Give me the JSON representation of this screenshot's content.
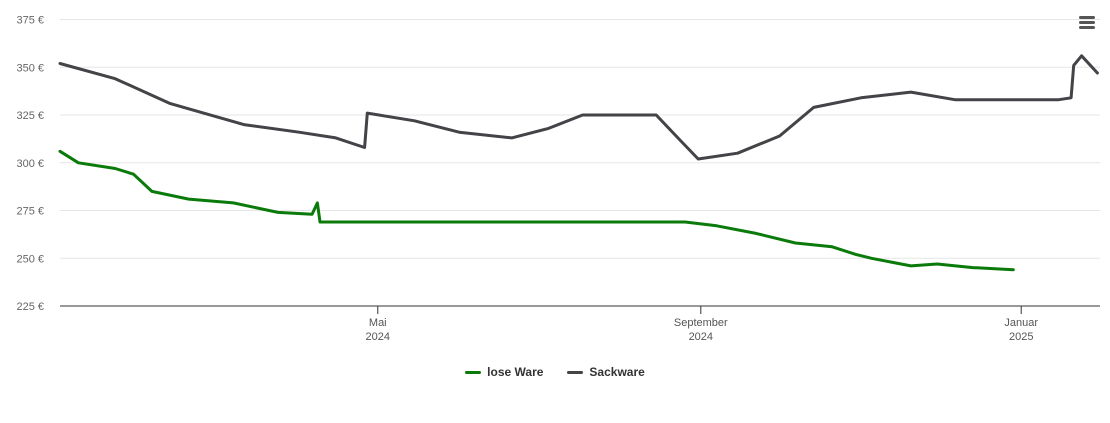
{
  "chart_data": {
    "type": "line",
    "x_range": [
      "2024-01-01",
      "2025-01-31"
    ],
    "y_range": [
      225,
      380
    ],
    "y_ticks": [
      225,
      250,
      275,
      300,
      325,
      350,
      375
    ],
    "y_tick_labels": [
      "225 €",
      "250 €",
      "275 €",
      "300 €",
      "325 €",
      "350 €",
      "375 €"
    ],
    "x_ticks": [
      {
        "date": "2024-05-01",
        "label_top": "Mai",
        "label_bottom": "2024"
      },
      {
        "date": "2024-09-01",
        "label_top": "September",
        "label_bottom": "2024"
      },
      {
        "date": "2025-01-01",
        "label_top": "Januar",
        "label_bottom": "2025"
      }
    ],
    "grid": true,
    "legend_position": "bottom-center",
    "series": [
      {
        "name": "lose Ware",
        "color": "#0a7a0a",
        "points": [
          [
            "2024-01-01",
            306
          ],
          [
            "2024-01-08",
            300
          ],
          [
            "2024-01-22",
            297
          ],
          [
            "2024-01-29",
            294
          ],
          [
            "2024-02-05",
            285
          ],
          [
            "2024-02-19",
            281
          ],
          [
            "2024-03-07",
            279
          ],
          [
            "2024-03-24",
            274
          ],
          [
            "2024-04-06",
            273
          ],
          [
            "2024-04-08",
            279
          ],
          [
            "2024-04-09",
            269
          ],
          [
            "2024-06-01",
            269
          ],
          [
            "2024-07-01",
            269
          ],
          [
            "2024-08-01",
            269
          ],
          [
            "2024-08-26",
            269
          ],
          [
            "2024-09-07",
            267
          ],
          [
            "2024-09-22",
            263
          ],
          [
            "2024-10-07",
            258
          ],
          [
            "2024-10-21",
            256
          ],
          [
            "2024-10-30",
            252
          ],
          [
            "2024-11-05",
            250
          ],
          [
            "2024-11-30",
            247
          ],
          [
            "2024-12-14",
            245
          ],
          [
            "2024-12-29",
            244
          ],
          [
            "2024-12-15",
            245
          ],
          [
            "2024-12-29",
            244
          ],
          [
            "2024-11-20",
            246
          ]
        ]
      },
      {
        "name": "Sackware",
        "color": "#434348",
        "points": [
          [
            "2024-01-01",
            352
          ],
          [
            "2024-01-22",
            344
          ],
          [
            "2024-02-12",
            331
          ],
          [
            "2024-03-11",
            320
          ],
          [
            "2024-04-01",
            316
          ],
          [
            "2024-04-15",
            313
          ],
          [
            "2024-04-26",
            308
          ],
          [
            "2024-04-27",
            326
          ],
          [
            "2024-05-15",
            322
          ],
          [
            "2024-06-01",
            316
          ],
          [
            "2024-06-21",
            313
          ],
          [
            "2024-07-05",
            318
          ],
          [
            "2024-07-18",
            325
          ],
          [
            "2024-08-15",
            325
          ],
          [
            "2024-08-24",
            312
          ],
          [
            "2024-08-31",
            302
          ],
          [
            "2024-09-15",
            305
          ],
          [
            "2024-10-01",
            314
          ],
          [
            "2024-10-14",
            329
          ],
          [
            "2024-11-01",
            334
          ],
          [
            "2024-11-20",
            337
          ],
          [
            "2024-12-07",
            333
          ],
          [
            "2024-12-31",
            333
          ],
          [
            "2025-01-15",
            333
          ],
          [
            "2025-01-20",
            334
          ],
          [
            "2025-01-21",
            351
          ],
          [
            "2025-01-24",
            356
          ],
          [
            "2025-01-30",
            347
          ]
        ]
      }
    ]
  }
}
